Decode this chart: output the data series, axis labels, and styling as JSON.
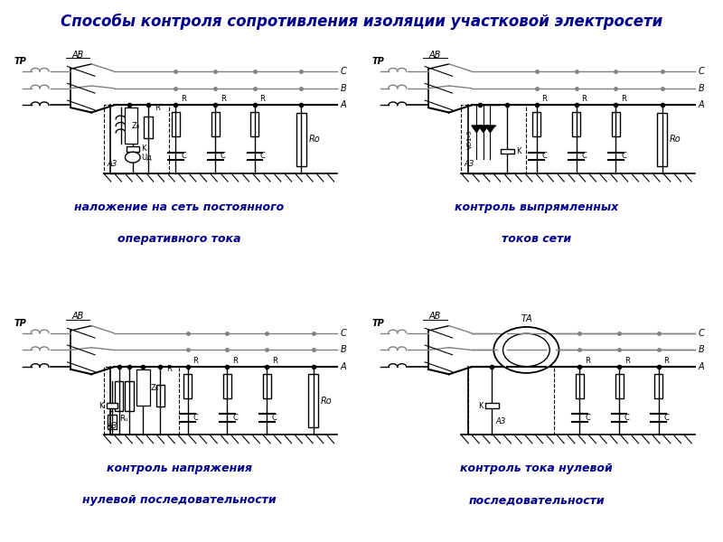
{
  "title": "Способы контроля сопротивления изоляции участковой электросети",
  "title_color": "#00008B",
  "title_fontsize": 12,
  "background_color": "#FFFFFF",
  "line_color": "#000000",
  "gray_color": "#808080",
  "caption_color": "#00008B",
  "captions": [
    [
      "наложение на сеть постоянного",
      "оперативного тока"
    ],
    [
      "контроль выпрямленных",
      "токов сети"
    ],
    [
      "контроль напряжения",
      "нулевой последовательности"
    ],
    [
      "контроль тока нулевой",
      "последовательности"
    ]
  ]
}
